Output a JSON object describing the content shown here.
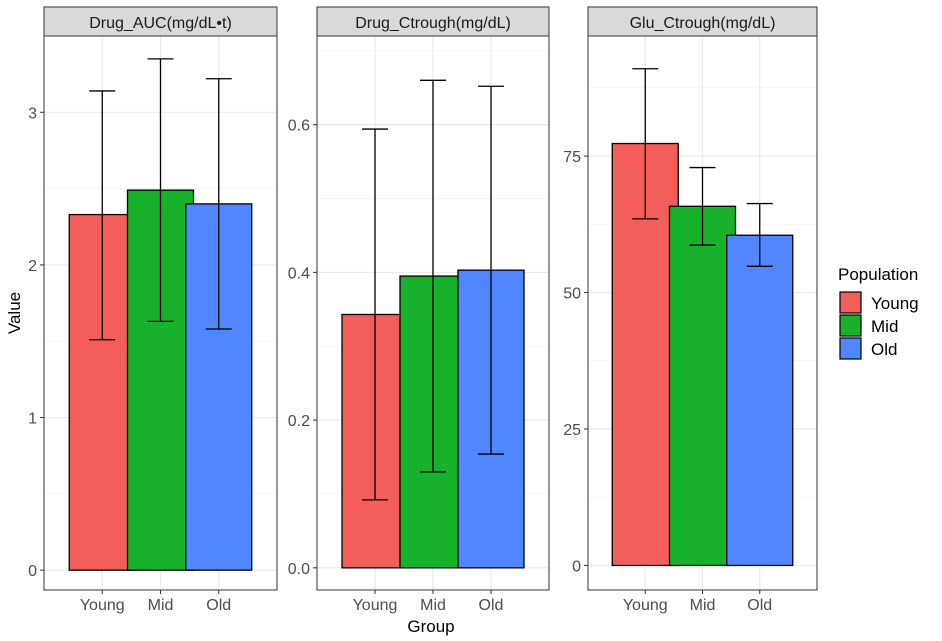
{
  "chart_data": {
    "type": "bar",
    "xlabel": "Group",
    "ylabel": "Value",
    "categories": [
      "Young",
      "Mid",
      "Old"
    ],
    "colors": [
      "#f35e5a",
      "#17b12b",
      "#5086ff"
    ],
    "legend": {
      "title": "Population",
      "position": "right",
      "entries": [
        "Young",
        "Mid",
        "Old"
      ]
    },
    "grid": true,
    "facets": [
      {
        "title": "Drug_AUC(mg/dL•t)",
        "ylim": [
          -0.13,
          3.5
        ],
        "ticks": [
          0,
          1,
          2,
          3
        ],
        "tick_labels": [
          "0",
          "1",
          "2",
          "3"
        ],
        "values": [
          2.33,
          2.49,
          2.4
        ],
        "error_low": [
          1.51,
          1.63,
          1.58
        ],
        "error_high": [
          3.14,
          3.35,
          3.22
        ]
      },
      {
        "title": "Drug_Ctrough(mg/dL)",
        "ylim": [
          -0.03,
          0.72
        ],
        "ticks": [
          0,
          0.2,
          0.4,
          0.6
        ],
        "tick_labels": [
          "0.0",
          "0.2",
          "0.4",
          "0.6"
        ],
        "values": [
          0.343,
          0.395,
          0.403
        ],
        "error_low": [
          0.092,
          0.13,
          0.154
        ],
        "error_high": [
          0.594,
          0.66,
          0.652
        ]
      },
      {
        "title": "Glu_Ctrough(mg/dL)",
        "ylim": [
          -4.5,
          97
        ],
        "ticks": [
          0,
          25,
          50,
          75
        ],
        "tick_labels": [
          "0",
          "25",
          "50",
          "75"
        ],
        "values": [
          77.3,
          65.8,
          60.5
        ],
        "error_low": [
          63.5,
          58.7,
          54.8
        ],
        "error_high": [
          91.0,
          72.9,
          66.3
        ]
      }
    ]
  }
}
